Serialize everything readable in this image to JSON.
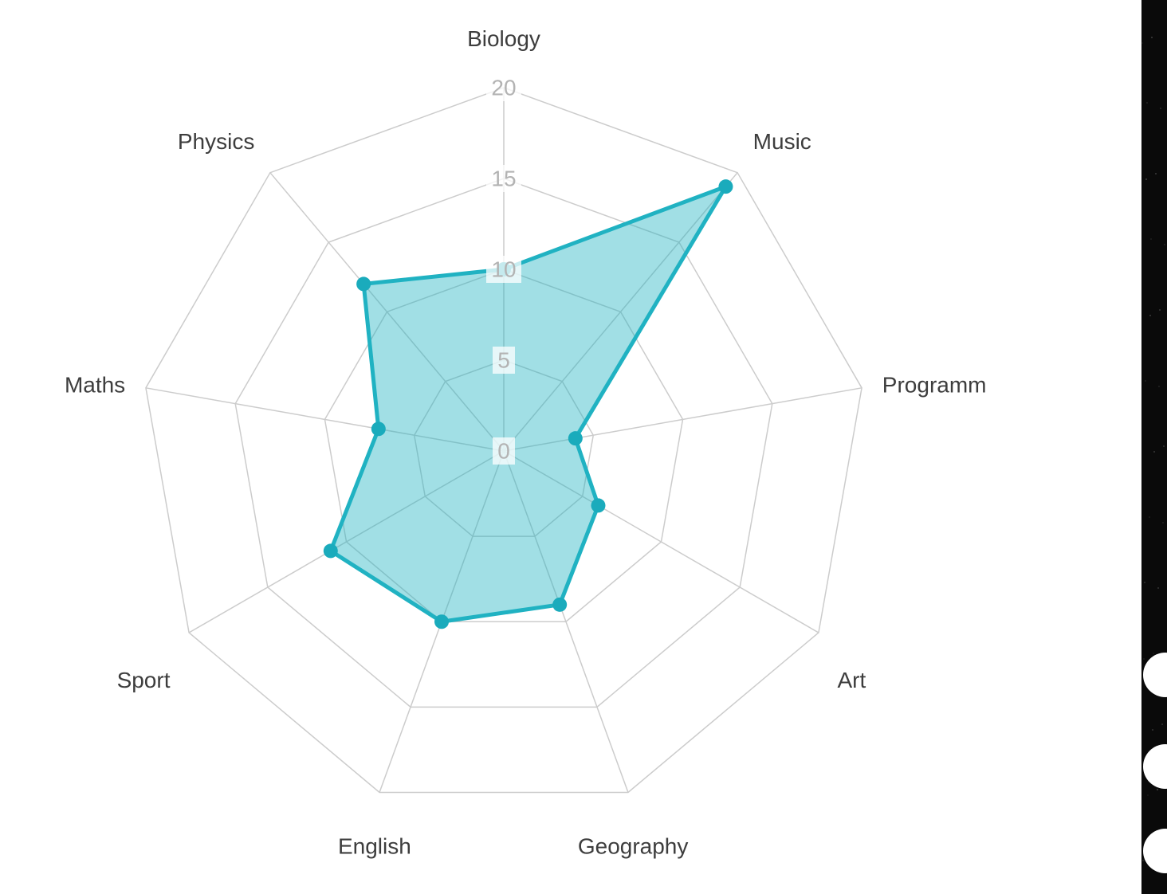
{
  "chart_data": {
    "type": "radar",
    "title": "",
    "categories": [
      "Biology",
      "Music",
      "Programm",
      "Art",
      "Geography",
      "English",
      "Sport",
      "Maths",
      "Physics"
    ],
    "series": [
      {
        "values": [
          10,
          19,
          4,
          6,
          9,
          10,
          11,
          7,
          12
        ]
      }
    ],
    "scale": {
      "min": 0,
      "max": 20,
      "step": 5,
      "tick_labels": [
        "0",
        "5",
        "10",
        "15",
        "20"
      ]
    },
    "axis_start": "top",
    "direction": "clockwise",
    "grid": true,
    "legend": false,
    "line_color": "#20b2c2",
    "fill_color": "rgba(32,178,194,0.42)",
    "point_color": "#1aabbc",
    "grid_color": "#cccccc",
    "tick_color": "#b3b3b3",
    "tick_backdrop_color": "rgba(255,255,255,0.75)",
    "label_color": "#3d3d3d"
  },
  "side_panel": {
    "background": "#0a0a0a",
    "button_color": "#ffffff"
  }
}
